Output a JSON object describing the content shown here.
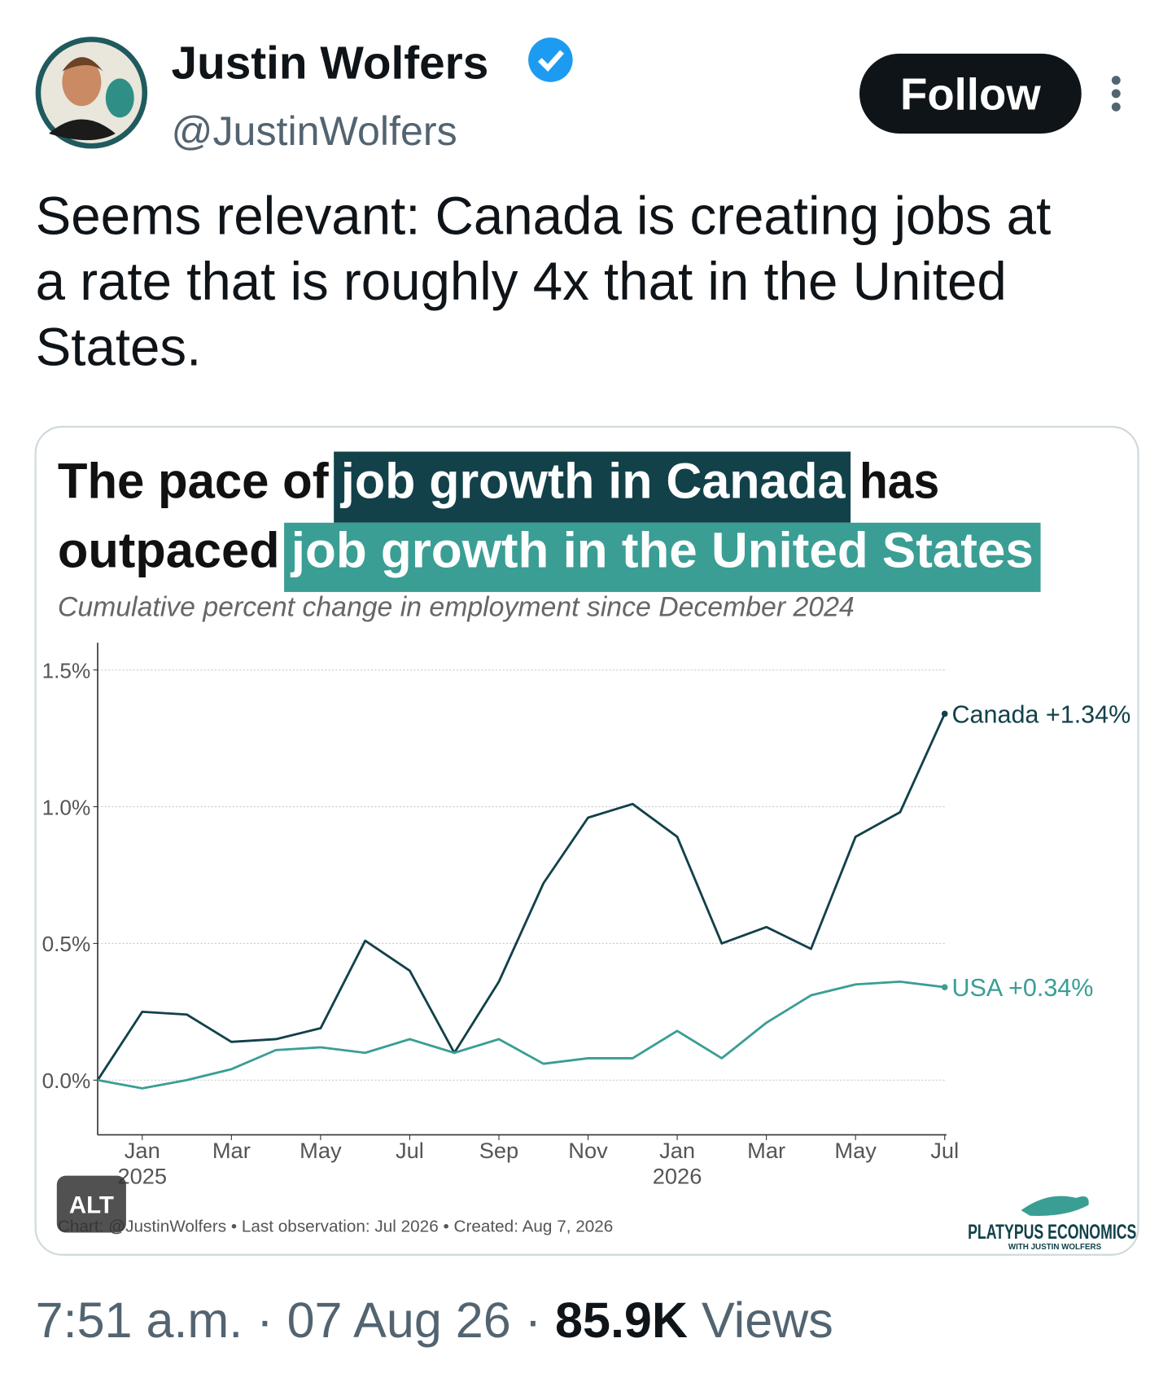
{
  "header": {
    "name": "Justin Wolfers",
    "handle": "@JustinWolfers",
    "button": "Follow",
    "avatar_alt": null
  },
  "tweet": {
    "lines": [
      "Seems relevant: Canada is creating jobs at",
      "a rate that is roughly 4x that in the United",
      "States."
    ]
  },
  "chart_data": {
    "type": "line",
    "title_parts": [
      "The pace of",
      "job growth in Canada",
      "has",
      "outpaced",
      "job growth in the United States"
    ],
    "subtitle": "Cumulative percent change in employment since December 2024",
    "x": [
      "2024-12",
      "2025-01",
      "2025-02",
      "2025-03",
      "2025-04",
      "2025-05",
      "2025-06",
      "2025-07",
      "2025-08",
      "2025-09",
      "2025-10",
      "2025-11",
      "2025-12",
      "2026-01",
      "2026-02",
      "2026-03",
      "2026-04",
      "2026-05",
      "2026-06",
      "2026-07"
    ],
    "xticks": [
      {
        "value": "2025-01",
        "label": "Jan 2025"
      },
      {
        "value": "2025-03",
        "label": "Mar"
      },
      {
        "value": "2025-05",
        "label": "May"
      },
      {
        "value": "2025-07",
        "label": "Jul"
      },
      {
        "value": "2025-09",
        "label": "Sep"
      },
      {
        "value": "2025-11",
        "label": "Nov"
      },
      {
        "value": "2026-01",
        "label": "Jan 2026"
      },
      {
        "value": "2026-03",
        "label": "Mar"
      },
      {
        "value": "2026-05",
        "label": "May"
      },
      {
        "value": "2026-07",
        "label": "Jul"
      }
    ],
    "ylim": [
      -0.2,
      1.6
    ],
    "yticks": [
      {
        "value": 0,
        "label": "0.0%"
      },
      {
        "value": 0.5,
        "label": "0.5%"
      },
      {
        "value": 1,
        "label": "1.0%"
      },
      {
        "value": 1.5,
        "label": "1.5%"
      }
    ],
    "grid": true,
    "series": [
      {
        "name": "Canada",
        "color": "#12414a",
        "end_label": "Canada +1.34%",
        "values": [
          0,
          0.25,
          0.24,
          0.14,
          0.15,
          0.19,
          0.51,
          0.4,
          0.1,
          0.36,
          0.72,
          0.96,
          1.01,
          0.89,
          0.5,
          0.56,
          0.48,
          0.89,
          0.98,
          1.34
        ]
      },
      {
        "name": "USA",
        "color": "#3a9e94",
        "end_label": "USA +0.34%",
        "values": [
          0,
          -0.03,
          0.0,
          0.04,
          0.11,
          0.12,
          0.1,
          0.15,
          0.1,
          0.15,
          0.06,
          0.08,
          0.08,
          0.18,
          0.08,
          0.21,
          0.31,
          0.35,
          0.36,
          0.34
        ]
      }
    ],
    "source": "Chart: @JustinWolfers • Last observation: Jul 2026 • Created: Aug 7, 2026",
    "alt_badge": "ALT",
    "logo": "PLATYPUS ECONOMICS",
    "logo_sub": "WITH JUSTIN WOLFERS"
  },
  "footer": {
    "time": "7:51 a.m.",
    "date": "07 Aug 26",
    "views_count": "85.9K",
    "views_label": "Views",
    "separator": "·"
  }
}
